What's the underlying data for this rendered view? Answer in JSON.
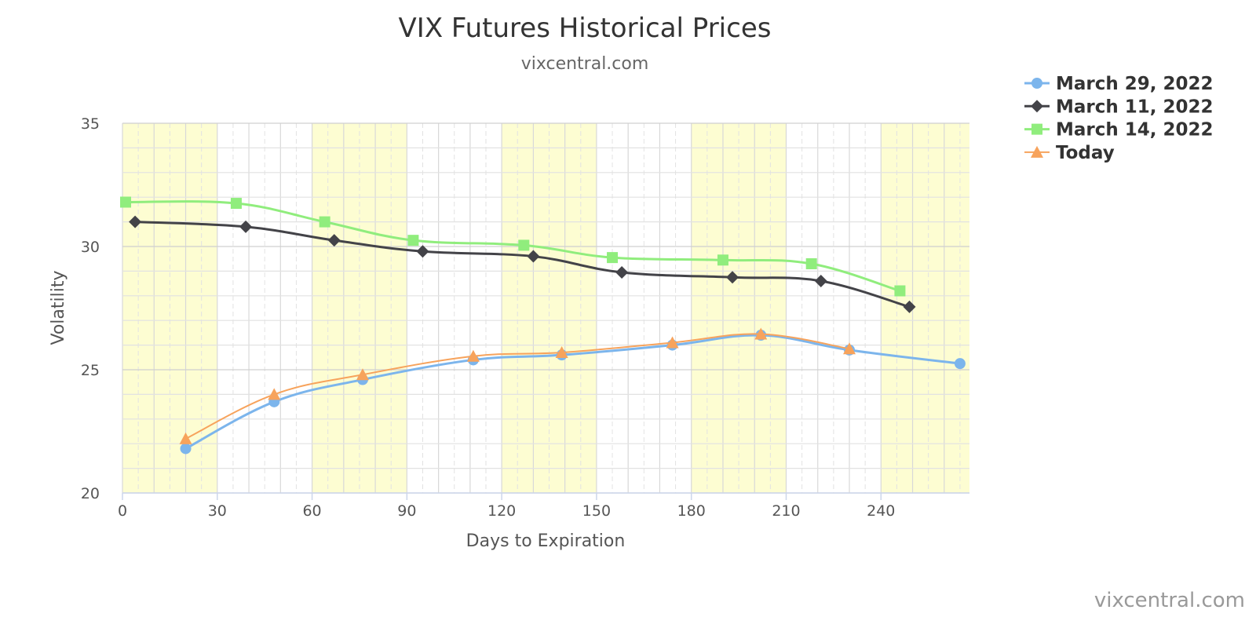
{
  "chart_data": {
    "type": "line",
    "title": "VIX Futures Historical Prices",
    "subtitle": "vixcentral.com",
    "xlabel": "Days to Expiration",
    "ylabel": "Volatility",
    "xlim": [
      0,
      268
    ],
    "ylim": [
      20,
      35
    ],
    "x_ticks": [
      0,
      30,
      60,
      90,
      120,
      150,
      180,
      210,
      240
    ],
    "y_ticks": [
      20,
      25,
      30,
      35
    ],
    "grid": true,
    "shaded_x_bands": [
      [
        0,
        30
      ],
      [
        60,
        90
      ],
      [
        120,
        150
      ],
      [
        180,
        210
      ],
      [
        240,
        268
      ]
    ],
    "legend_position": "top-right",
    "series": [
      {
        "name": "March 29, 2022",
        "color": "#7cb5ec",
        "marker": "circle",
        "x": [
          20,
          48,
          76,
          111,
          139,
          174,
          202,
          230,
          265
        ],
        "y": [
          21.8,
          23.7,
          24.6,
          25.4,
          25.6,
          26.0,
          26.4,
          25.8,
          25.25
        ]
      },
      {
        "name": "March 11, 2022",
        "color": "#434348",
        "marker": "diamond",
        "x": [
          4,
          39,
          67,
          95,
          130,
          158,
          193,
          221,
          249
        ],
        "y": [
          31.0,
          30.8,
          30.25,
          29.8,
          29.6,
          28.95,
          28.75,
          28.6,
          27.55
        ]
      },
      {
        "name": "March 14, 2022",
        "color": "#90ed7d",
        "marker": "square",
        "x": [
          1,
          36,
          64,
          92,
          127,
          155,
          190,
          218,
          246
        ],
        "y": [
          31.8,
          31.75,
          31.0,
          30.25,
          30.05,
          29.55,
          29.45,
          29.3,
          28.2
        ]
      },
      {
        "name": "Today",
        "color": "#f7a35c",
        "marker": "triangle",
        "x": [
          20,
          48,
          76,
          111,
          139,
          174,
          202,
          230
        ],
        "y": [
          22.2,
          24.0,
          24.8,
          25.55,
          25.7,
          26.1,
          26.45,
          25.85
        ]
      }
    ]
  },
  "credit": "vixcentral.com"
}
